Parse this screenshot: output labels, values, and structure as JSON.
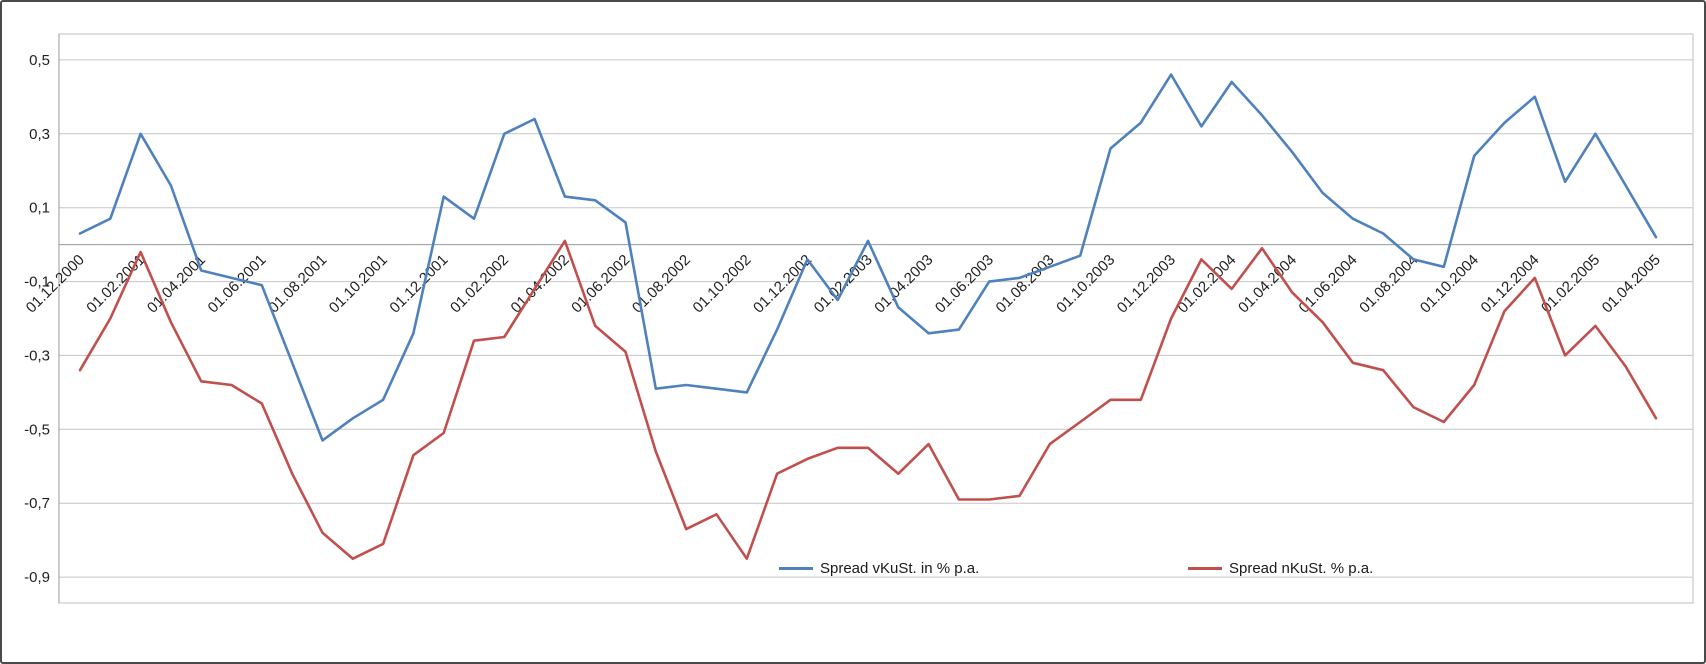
{
  "chart_data": {
    "type": "line",
    "x": [
      "01.12.2000",
      "01.01.2001",
      "01.02.2001",
      "01.03.2001",
      "01.04.2001",
      "01.05.2001",
      "01.06.2001",
      "01.07.2001",
      "01.08.2001",
      "01.09.2001",
      "01.10.2001",
      "01.11.2001",
      "01.12.2001",
      "01.01.2002",
      "01.02.2002",
      "01.03.2002",
      "01.04.2002",
      "01.05.2002",
      "01.06.2002",
      "01.07.2002",
      "01.08.2002",
      "01.09.2002",
      "01.10.2002",
      "01.11.2002",
      "01.12.2002",
      "01.01.2003",
      "01.02.2003",
      "01.03.2003",
      "01.04.2003",
      "01.05.2003",
      "01.06.2003",
      "01.07.2003",
      "01.08.2003",
      "01.09.2003",
      "01.10.2003",
      "01.11.2003",
      "01.12.2003",
      "01.01.2004",
      "01.02.2004",
      "01.03.2004",
      "01.04.2004",
      "01.05.2004",
      "01.06.2004",
      "01.07.2004",
      "01.08.2004",
      "01.09.2004",
      "01.10.2004",
      "01.11.2004",
      "01.12.2004",
      "01.01.2005",
      "01.02.2005",
      "01.03.2005",
      "01.04.2005"
    ],
    "x_label_every": 2,
    "series": [
      {
        "name": "Spread vKuSt. in % p.a.",
        "color": "#4F81BD",
        "values": [
          0.03,
          0.07,
          0.3,
          0.16,
          -0.07,
          -0.09,
          -0.11,
          -0.32,
          -0.53,
          -0.47,
          -0.42,
          -0.24,
          0.13,
          0.07,
          0.3,
          0.34,
          0.13,
          0.12,
          0.06,
          -0.39,
          -0.38,
          -0.39,
          -0.4,
          -0.23,
          -0.04,
          -0.15,
          0.01,
          -0.17,
          -0.24,
          -0.23,
          -0.1,
          -0.09,
          -0.06,
          -0.03,
          0.26,
          0.33,
          0.46,
          0.32,
          0.44,
          0.35,
          0.25,
          0.14,
          0.07,
          0.03,
          -0.04,
          -0.06,
          0.24,
          0.33,
          0.4,
          0.17,
          0.3,
          0.16,
          0.02
        ]
      },
      {
        "name": "Spread nKuSt. % p.a.",
        "color": "#C0504D",
        "values": [
          -0.34,
          -0.2,
          -0.02,
          -0.21,
          -0.37,
          -0.38,
          -0.43,
          -0.62,
          -0.78,
          -0.85,
          -0.81,
          -0.57,
          -0.51,
          -0.26,
          -0.25,
          -0.12,
          0.01,
          -0.22,
          -0.29,
          -0.56,
          -0.77,
          -0.73,
          -0.85,
          -0.62,
          -0.58,
          -0.55,
          -0.55,
          -0.62,
          -0.54,
          -0.69,
          -0.69,
          -0.68,
          -0.54,
          -0.48,
          -0.42,
          -0.42,
          -0.2,
          -0.04,
          -0.12,
          -0.01,
          -0.13,
          -0.21,
          -0.32,
          -0.34,
          -0.44,
          -0.48,
          -0.38,
          -0.18,
          -0.09,
          -0.3,
          -0.22,
          -0.33,
          -0.47
        ]
      }
    ],
    "y_ticks": {
      "values": [
        0.5,
        0.3,
        0.1,
        -0.1,
        -0.3,
        -0.5,
        -0.7,
        -0.9
      ],
      "labels": [
        "0,5",
        "0,3",
        "0,1",
        "-0,1",
        "-0,3",
        "-0,5",
        "-0,7",
        "-0,9"
      ]
    },
    "ylim": [
      -0.97,
      0.57
    ],
    "grid": true,
    "legend_position": "inside-bottom",
    "title": ""
  },
  "style": {
    "gridline_color": "#c6c6c6",
    "axis_color": "#9a9a9a",
    "plot_border_color": "#bfbfbf",
    "tick_label_color": "#1f1f1f"
  }
}
